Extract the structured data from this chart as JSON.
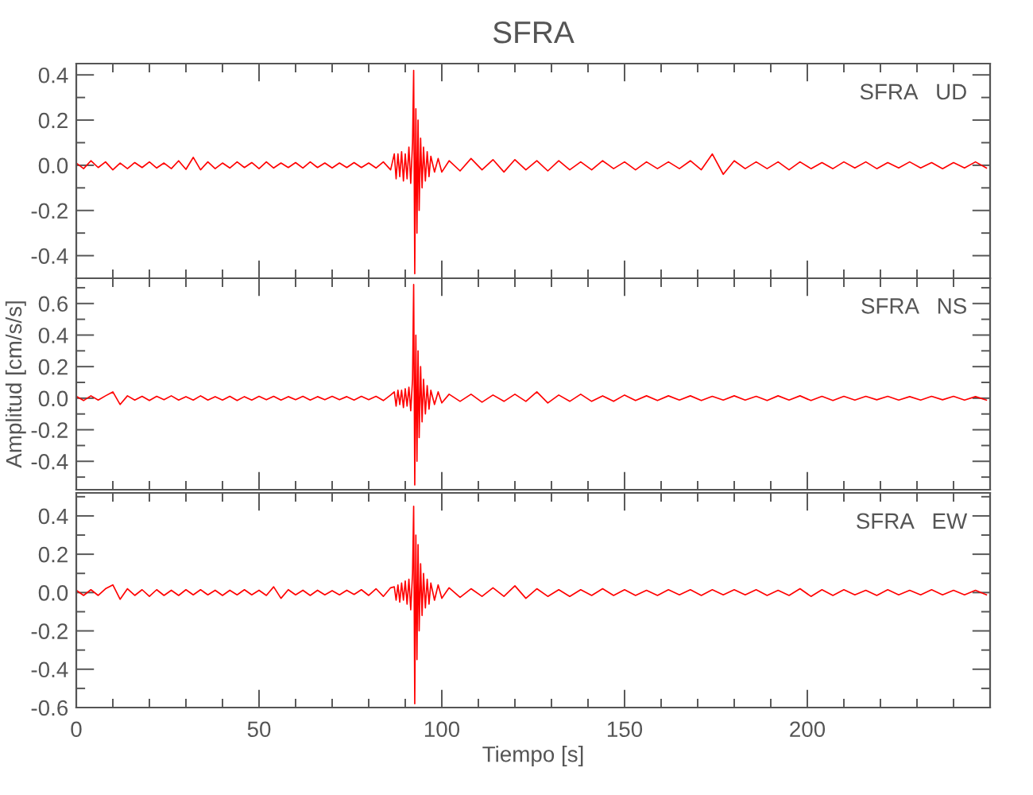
{
  "chart_data": [
    {
      "type": "line",
      "title": "SFRA",
      "annotations": [
        "SFRA   UD"
      ],
      "tick_labels": "y",
      "xlim": [
        0,
        250
      ],
      "xticks": [
        0,
        {
          "value": 10,
          "label": null
        },
        {
          "value": 20,
          "label": null
        },
        {
          "value": 30,
          "label": null
        },
        {
          "value": 40,
          "label": null
        },
        50,
        {
          "value": 60,
          "label": null
        },
        {
          "value": 70,
          "label": null
        },
        {
          "value": 80,
          "label": null
        },
        {
          "value": 90,
          "label": null
        },
        100,
        {
          "value": 110,
          "label": null
        },
        {
          "value": 120,
          "label": null
        },
        {
          "value": 130,
          "label": null
        },
        {
          "value": 140,
          "label": null
        },
        150,
        {
          "value": 160,
          "label": null
        },
        {
          "value": 170,
          "label": null
        },
        {
          "value": 180,
          "label": null
        },
        {
          "value": 190,
          "label": null
        },
        200,
        {
          "value": 210,
          "label": null
        },
        {
          "value": 220,
          "label": null
        },
        {
          "value": 230,
          "label": null
        },
        {
          "value": 240,
          "label": null
        }
      ],
      "ylim": [
        -0.5,
        0.45
      ],
      "yticks": [
        {
          "value": -0.5,
          "label": null
        },
        {
          "value": -0.4,
          "label": "-0.4"
        },
        {
          "value": -0.3,
          "label": null
        },
        {
          "value": -0.2,
          "label": "-0.2"
        },
        {
          "value": -0.1,
          "label": null
        },
        {
          "value": 0,
          "label": "0.0"
        },
        {
          "value": 0.1,
          "label": null
        },
        {
          "value": 0.2,
          "label": "0.2"
        },
        {
          "value": 0.3,
          "label": null
        },
        {
          "value": 0.4,
          "label": "0.4"
        }
      ],
      "x": [
        0,
        2,
        4,
        6,
        8,
        10,
        12,
        14,
        16,
        18,
        20,
        22,
        24,
        26,
        28,
        30,
        32,
        34,
        36,
        38,
        40,
        42,
        44,
        46,
        48,
        50,
        52,
        54,
        56,
        58,
        60,
        62,
        64,
        66,
        68,
        70,
        72,
        74,
        76,
        78,
        80,
        82,
        84,
        86,
        87,
        87.5,
        88,
        88.5,
        89,
        89.5,
        90,
        90.5,
        91,
        91.5,
        92,
        92.3,
        92.6,
        92.9,
        93.2,
        93.5,
        93.8,
        94.2,
        94.6,
        95,
        95.5,
        96,
        96.5,
        97,
        98,
        99,
        100,
        102,
        105,
        108,
        111,
        114,
        117,
        120,
        123,
        126,
        129,
        132,
        135,
        138,
        141,
        144,
        147,
        150,
        153,
        156,
        159,
        162,
        165,
        168,
        171,
        174,
        177,
        180,
        183,
        186,
        189,
        192,
        195,
        198,
        201,
        204,
        207,
        210,
        213,
        216,
        219,
        222,
        225,
        228,
        231,
        234,
        237,
        240,
        243,
        246,
        249
      ],
      "series": [
        {
          "color": "#ff0000",
          "values": [
            0.01,
            -0.015,
            0.02,
            -0.01,
            0.015,
            -0.02,
            0.01,
            -0.015,
            0.012,
            -0.01,
            0.015,
            -0.012,
            0.01,
            -0.015,
            0.02,
            -0.018,
            0.035,
            -0.02,
            0.015,
            -0.015,
            0.01,
            -0.012,
            0.015,
            -0.01,
            0.012,
            -0.015,
            0.015,
            -0.012,
            0.01,
            -0.01,
            0.012,
            -0.012,
            0.015,
            -0.01,
            0.01,
            -0.012,
            0.01,
            -0.01,
            0.012,
            -0.01,
            0.01,
            -0.012,
            0.015,
            -0.02,
            0.05,
            -0.06,
            0.05,
            -0.05,
            0.06,
            -0.07,
            0.05,
            -0.06,
            0.08,
            -0.08,
            0.1,
            0.42,
            -0.48,
            0.25,
            -0.3,
            0.2,
            -0.2,
            0.12,
            -0.1,
            0.08,
            -0.07,
            0.06,
            -0.05,
            0.04,
            -0.03,
            0.03,
            -0.03,
            0.02,
            -0.025,
            0.03,
            -0.02,
            0.025,
            -0.03,
            0.025,
            -0.02,
            0.02,
            -0.025,
            0.02,
            -0.02,
            0.015,
            -0.02,
            0.02,
            -0.015,
            0.015,
            -0.02,
            0.015,
            -0.015,
            0.015,
            -0.015,
            0.02,
            -0.02,
            0.05,
            -0.04,
            0.02,
            -0.015,
            0.015,
            -0.015,
            0.015,
            -0.02,
            0.015,
            -0.015,
            0.012,
            -0.015,
            0.015,
            -0.012,
            0.015,
            -0.015,
            0.012,
            -0.012,
            0.015,
            -0.012,
            0.012,
            -0.015,
            0.012,
            -0.012,
            0.015,
            -0.012
          ]
        }
      ]
    },
    {
      "type": "line",
      "ylabel": "Amplitud [cm/s/s]",
      "annotations": [
        "SFRA   NS"
      ],
      "tick_labels": "y",
      "xlim": [
        0,
        250
      ],
      "xticks": [
        0,
        {
          "value": 10,
          "label": null
        },
        {
          "value": 20,
          "label": null
        },
        {
          "value": 30,
          "label": null
        },
        {
          "value": 40,
          "label": null
        },
        50,
        {
          "value": 60,
          "label": null
        },
        {
          "value": 70,
          "label": null
        },
        {
          "value": 80,
          "label": null
        },
        {
          "value": 90,
          "label": null
        },
        100,
        {
          "value": 110,
          "label": null
        },
        {
          "value": 120,
          "label": null
        },
        {
          "value": 130,
          "label": null
        },
        {
          "value": 140,
          "label": null
        },
        150,
        {
          "value": 160,
          "label": null
        },
        {
          "value": 170,
          "label": null
        },
        {
          "value": 180,
          "label": null
        },
        {
          "value": 190,
          "label": null
        },
        200,
        {
          "value": 210,
          "label": null
        },
        {
          "value": 220,
          "label": null
        },
        {
          "value": 230,
          "label": null
        },
        {
          "value": 240,
          "label": null
        }
      ],
      "ylim": [
        -0.58,
        0.76
      ],
      "yticks": [
        {
          "value": -0.5,
          "label": null
        },
        {
          "value": -0.4,
          "label": "-0.4"
        },
        {
          "value": -0.3,
          "label": null
        },
        {
          "value": -0.2,
          "label": "-0.2"
        },
        {
          "value": -0.1,
          "label": null
        },
        {
          "value": 0,
          "label": "0.0"
        },
        {
          "value": 0.1,
          "label": null
        },
        {
          "value": 0.2,
          "label": "0.2"
        },
        {
          "value": 0.3,
          "label": null
        },
        {
          "value": 0.4,
          "label": "0.4"
        },
        {
          "value": 0.5,
          "label": null
        },
        {
          "value": 0.6,
          "label": "0.6"
        },
        {
          "value": 0.7,
          "label": null
        }
      ],
      "x": [
        0,
        2,
        4,
        6,
        8,
        10,
        12,
        14,
        16,
        18,
        20,
        22,
        24,
        26,
        28,
        30,
        32,
        34,
        36,
        38,
        40,
        42,
        44,
        46,
        48,
        50,
        52,
        54,
        56,
        58,
        60,
        62,
        64,
        66,
        68,
        70,
        72,
        74,
        76,
        78,
        80,
        82,
        84,
        86,
        87,
        87.5,
        88,
        88.5,
        89,
        89.5,
        90,
        90.5,
        91,
        91.5,
        92,
        92.3,
        92.6,
        92.9,
        93.2,
        93.5,
        93.8,
        94.2,
        94.6,
        95,
        95.5,
        96,
        96.5,
        97,
        98,
        99,
        100,
        102,
        105,
        108,
        111,
        114,
        117,
        120,
        123,
        126,
        129,
        132,
        135,
        138,
        141,
        144,
        147,
        150,
        153,
        156,
        159,
        162,
        165,
        168,
        171,
        174,
        177,
        180,
        183,
        186,
        189,
        192,
        195,
        198,
        201,
        204,
        207,
        210,
        213,
        216,
        219,
        222,
        225,
        228,
        231,
        234,
        237,
        240,
        243,
        246,
        249
      ],
      "series": [
        {
          "color": "#ff0000",
          "values": [
            0.012,
            -0.015,
            0.015,
            -0.012,
            0.015,
            0.04,
            -0.04,
            0.015,
            -0.012,
            0.012,
            -0.015,
            0.012,
            -0.01,
            0.015,
            -0.012,
            0.01,
            -0.012,
            0.015,
            -0.012,
            0.01,
            -0.012,
            0.012,
            -0.015,
            0.01,
            -0.012,
            0.012,
            -0.01,
            0.012,
            -0.012,
            0.01,
            -0.01,
            0.012,
            -0.012,
            0.01,
            -0.01,
            0.012,
            -0.01,
            0.01,
            -0.012,
            0.012,
            -0.01,
            0.012,
            -0.015,
            0.02,
            0.04,
            -0.05,
            0.05,
            -0.04,
            0.05,
            -0.06,
            0.06,
            -0.05,
            0.07,
            -0.08,
            0.12,
            0.72,
            -0.55,
            0.4,
            -0.4,
            0.3,
            -0.25,
            0.2,
            -0.15,
            0.12,
            -0.1,
            0.08,
            -0.07,
            0.05,
            -0.04,
            0.04,
            -0.03,
            0.025,
            -0.02,
            0.025,
            -0.025,
            0.02,
            -0.02,
            0.025,
            -0.02,
            0.04,
            -0.03,
            0.02,
            -0.02,
            0.025,
            -0.02,
            0.015,
            -0.02,
            0.02,
            -0.015,
            0.015,
            -0.015,
            0.015,
            -0.012,
            0.015,
            -0.015,
            0.012,
            -0.012,
            0.015,
            -0.012,
            0.012,
            -0.015,
            0.015,
            -0.012,
            0.015,
            -0.015,
            0.012,
            -0.015,
            0.012,
            -0.012,
            0.012,
            -0.01,
            0.012,
            -0.012,
            0.01,
            -0.012,
            0.012,
            -0.01,
            0.012,
            -0.012,
            0.01,
            -0.012
          ]
        }
      ]
    },
    {
      "type": "line",
      "xlabel": "Tiempo [s]",
      "annotations": [
        "SFRA   EW"
      ],
      "xlim": [
        0,
        250
      ],
      "xticks": [
        0,
        {
          "value": 10,
          "label": null
        },
        {
          "value": 20,
          "label": null
        },
        {
          "value": 30,
          "label": null
        },
        {
          "value": 40,
          "label": null
        },
        50,
        {
          "value": 60,
          "label": null
        },
        {
          "value": 70,
          "label": null
        },
        {
          "value": 80,
          "label": null
        },
        {
          "value": 90,
          "label": null
        },
        100,
        {
          "value": 110,
          "label": null
        },
        {
          "value": 120,
          "label": null
        },
        {
          "value": 130,
          "label": null
        },
        {
          "value": 140,
          "label": null
        },
        150,
        {
          "value": 160,
          "label": null
        },
        {
          "value": 170,
          "label": null
        },
        {
          "value": 180,
          "label": null
        },
        {
          "value": 190,
          "label": null
        },
        200,
        {
          "value": 210,
          "label": null
        },
        {
          "value": 220,
          "label": null
        },
        {
          "value": 230,
          "label": null
        },
        {
          "value": 240,
          "label": null
        }
      ],
      "ylim": [
        -0.6,
        0.52
      ],
      "yticks": [
        {
          "value": -0.6,
          "label": "-0.6"
        },
        {
          "value": -0.5,
          "label": null
        },
        {
          "value": -0.4,
          "label": "-0.4"
        },
        {
          "value": -0.3,
          "label": null
        },
        {
          "value": -0.2,
          "label": "-0.2"
        },
        {
          "value": -0.1,
          "label": null
        },
        {
          "value": 0,
          "label": "0.0"
        },
        {
          "value": 0.1,
          "label": null
        },
        {
          "value": 0.2,
          "label": "0.2"
        },
        {
          "value": 0.3,
          "label": null
        },
        {
          "value": 0.4,
          "label": "0.4"
        },
        {
          "value": 0.5,
          "label": null
        }
      ],
      "x": [
        0,
        2,
        4,
        6,
        8,
        10,
        12,
        14,
        16,
        18,
        20,
        22,
        24,
        26,
        28,
        30,
        32,
        34,
        36,
        38,
        40,
        42,
        44,
        46,
        48,
        50,
        52,
        54,
        56,
        58,
        60,
        62,
        64,
        66,
        68,
        70,
        72,
        74,
        76,
        78,
        80,
        82,
        84,
        86,
        87,
        87.5,
        88,
        88.5,
        89,
        89.5,
        90,
        90.5,
        91,
        91.5,
        92,
        92.3,
        92.6,
        92.9,
        93.2,
        93.5,
        93.8,
        94.2,
        94.6,
        95,
        95.5,
        96,
        96.5,
        97,
        98,
        99,
        100,
        102,
        105,
        108,
        111,
        114,
        117,
        120,
        123,
        126,
        129,
        132,
        135,
        138,
        141,
        144,
        147,
        150,
        153,
        156,
        159,
        162,
        165,
        168,
        171,
        174,
        177,
        180,
        183,
        186,
        189,
        192,
        195,
        198,
        201,
        204,
        207,
        210,
        213,
        216,
        219,
        222,
        225,
        228,
        231,
        234,
        237,
        240,
        243,
        246,
        249
      ],
      "series": [
        {
          "color": "#ff0000",
          "values": [
            0.012,
            -0.015,
            0.015,
            -0.015,
            0.02,
            0.04,
            -0.035,
            0.02,
            -0.015,
            0.015,
            -0.02,
            0.015,
            -0.015,
            0.012,
            -0.015,
            0.015,
            -0.012,
            0.015,
            -0.012,
            0.012,
            -0.015,
            0.012,
            -0.012,
            0.015,
            -0.012,
            0.012,
            -0.015,
            0.03,
            -0.03,
            0.015,
            -0.012,
            0.012,
            -0.015,
            0.012,
            -0.012,
            0.01,
            -0.012,
            0.012,
            -0.01,
            0.015,
            -0.015,
            0.02,
            -0.02,
            0.025,
            0.03,
            -0.04,
            0.04,
            -0.05,
            0.05,
            -0.04,
            0.06,
            -0.06,
            0.07,
            -0.09,
            0.1,
            0.45,
            -0.58,
            0.3,
            -0.35,
            0.25,
            -0.2,
            0.15,
            -0.12,
            0.1,
            -0.08,
            0.07,
            -0.06,
            0.05,
            -0.04,
            0.04,
            -0.03,
            0.025,
            -0.025,
            0.02,
            -0.02,
            0.025,
            -0.02,
            0.035,
            -0.03,
            0.02,
            -0.02,
            0.015,
            -0.02,
            0.015,
            -0.015,
            0.02,
            -0.015,
            0.015,
            -0.015,
            0.012,
            -0.015,
            0.015,
            -0.012,
            0.015,
            -0.015,
            0.015,
            -0.012,
            0.015,
            -0.012,
            0.015,
            -0.015,
            0.012,
            -0.015,
            0.02,
            -0.02,
            0.015,
            -0.015,
            0.015,
            -0.012,
            0.012,
            -0.015,
            0.015,
            -0.012,
            0.012,
            -0.012,
            0.015,
            -0.012,
            0.012,
            -0.012,
            0.012,
            -0.012
          ]
        }
      ]
    }
  ]
}
